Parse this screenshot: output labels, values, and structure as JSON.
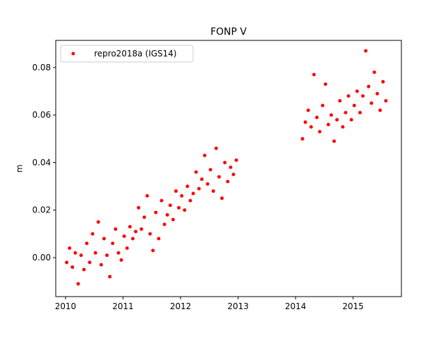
{
  "chart_data": {
    "type": "scatter",
    "title": "FONP V",
    "ylabel": "m",
    "xlim": [
      2009.83,
      2015.84
    ],
    "ylim": [
      -0.0164,
      0.0914
    ],
    "xticks": [
      2010,
      2011,
      2012,
      2013,
      2014,
      2015
    ],
    "yticks": [
      {
        "value": 0,
        "label": "0.00"
      },
      {
        "value": 0.02,
        "label": "0.02"
      },
      {
        "value": 0.04,
        "label": "0.04"
      },
      {
        "value": 0.06,
        "label": "0.06"
      },
      {
        "value": 0.08,
        "label": "0.08"
      }
    ],
    "legend": "upper left",
    "series": [
      {
        "name": "repro2018a (IGS14)",
        "color": "#ff0000",
        "x": [
          2010.02,
          2010.07,
          2010.12,
          2010.17,
          2010.22,
          2010.27,
          2010.32,
          2010.37,
          2010.42,
          2010.47,
          2010.52,
          2010.57,
          2010.62,
          2010.67,
          2010.72,
          2010.77,
          2010.82,
          2010.87,
          2010.92,
          2010.97,
          2011.02,
          2011.07,
          2011.12,
          2011.17,
          2011.22,
          2011.27,
          2011.32,
          2011.37,
          2011.42,
          2011.47,
          2011.52,
          2011.57,
          2011.62,
          2011.67,
          2011.72,
          2011.77,
          2011.82,
          2011.87,
          2011.92,
          2011.97,
          2012.02,
          2012.07,
          2012.12,
          2012.17,
          2012.22,
          2012.27,
          2012.32,
          2012.37,
          2012.42,
          2012.47,
          2012.52,
          2012.57,
          2012.62,
          2012.67,
          2012.72,
          2012.77,
          2012.82,
          2012.87,
          2012.92,
          2012.97,
          2014.12,
          2014.17,
          2014.22,
          2014.27,
          2014.32,
          2014.37,
          2014.42,
          2014.47,
          2014.52,
          2014.57,
          2014.62,
          2014.67,
          2014.72,
          2014.77,
          2014.82,
          2014.87,
          2014.92,
          2014.97,
          2015.02,
          2015.07,
          2015.12,
          2015.17,
          2015.22,
          2015.27,
          2015.32,
          2015.37,
          2015.42,
          2015.47,
          2015.52,
          2015.57
        ],
        "values": [
          -0.002,
          0.004,
          -0.004,
          0.002,
          -0.011,
          0.001,
          -0.005,
          0.006,
          -0.002,
          0.01,
          0.002,
          0.015,
          -0.003,
          0.008,
          0.001,
          -0.008,
          0.006,
          0.012,
          0.002,
          -0.001,
          0.009,
          0.004,
          0.013,
          0.008,
          0.011,
          0.021,
          0.012,
          0.017,
          0.026,
          0.01,
          0.003,
          0.019,
          0.008,
          0.024,
          0.014,
          0.018,
          0.022,
          0.016,
          0.028,
          0.021,
          0.026,
          0.02,
          0.03,
          0.024,
          0.027,
          0.036,
          0.029,
          0.033,
          0.043,
          0.031,
          0.037,
          0.028,
          0.046,
          0.034,
          0.025,
          0.04,
          0.032,
          0.038,
          0.035,
          0.041,
          0.05,
          0.057,
          0.062,
          0.055,
          0.077,
          0.059,
          0.053,
          0.064,
          0.073,
          0.056,
          0.06,
          0.049,
          0.058,
          0.066,
          0.055,
          0.061,
          0.068,
          0.058,
          0.064,
          0.07,
          0.061,
          0.068,
          0.087,
          0.072,
          0.065,
          0.078,
          0.069,
          0.062,
          0.074,
          0.066
        ]
      }
    ]
  }
}
